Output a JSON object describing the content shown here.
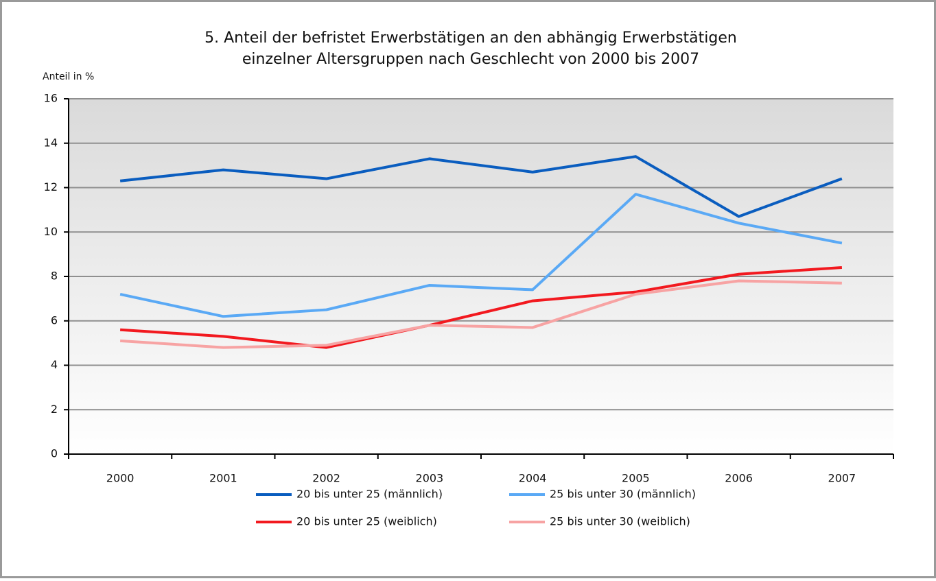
{
  "chart_data": {
    "type": "line",
    "title": [
      "5. Anteil der befristet Erwerbstätigen an den abhängig Erwerbstätigen",
      "einzelner Altersgruppen nach Geschlecht von 2000 bis 2007"
    ],
    "y_label": "Anteil in %",
    "categories": [
      "2000",
      "2001",
      "2002",
      "2003",
      "2004",
      "2005",
      "2006",
      "2007"
    ],
    "series": [
      {
        "name": "20 bis unter 25 (männlich)",
        "color": "#0a5dbf",
        "values": [
          12.3,
          12.8,
          12.4,
          13.3,
          12.7,
          13.4,
          10.7,
          12.4
        ]
      },
      {
        "name": "25 bis unter 30 (männlich)",
        "color": "#5aa9f5",
        "values": [
          7.2,
          6.2,
          6.5,
          7.6,
          7.4,
          11.7,
          10.4,
          9.5
        ]
      },
      {
        "name": "20 bis unter 25 (weiblich)",
        "color": "#f2191f",
        "values": [
          5.6,
          5.3,
          4.8,
          5.8,
          6.9,
          7.3,
          8.1,
          8.4
        ]
      },
      {
        "name": "25 bis unter 30 (weiblich)",
        "color": "#f7a3a3",
        "values": [
          5.1,
          4.8,
          4.9,
          5.8,
          5.7,
          7.2,
          7.8,
          7.7
        ]
      }
    ],
    "ylim": [
      0,
      16
    ],
    "yticks": [
      0,
      2,
      4,
      6,
      8,
      10,
      12,
      14,
      16
    ],
    "grid": true,
    "legend": "bottom"
  }
}
